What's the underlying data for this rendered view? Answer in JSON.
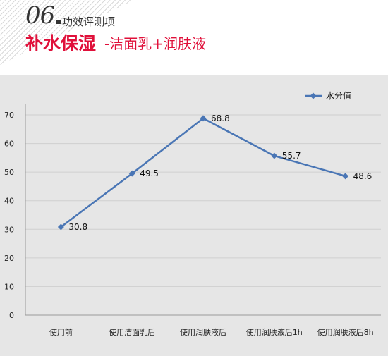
{
  "header": {
    "number": "06",
    "subtitle": "功效评测项",
    "title_main": "补水保湿",
    "title_sub": "-洁面乳+润肤液"
  },
  "colors": {
    "accent": "#e0103a",
    "series": "#4a76b5",
    "panel": "#e6e6e6"
  },
  "chart_data": {
    "type": "line",
    "categories": [
      "使用前",
      "使用洁面乳后",
      "使用润肤液后",
      "使用润肤液后1h",
      "使用润肤液后8h"
    ],
    "series": [
      {
        "name": "水分值",
        "values": [
          30.8,
          49.5,
          68.8,
          55.7,
          48.6
        ],
        "labels": [
          "30.8",
          "49.5",
          "68.8",
          "55.7",
          "48.6"
        ]
      }
    ],
    "ylim": [
      0,
      70
    ],
    "yticks": [
      "0",
      "10",
      "20",
      "30",
      "40",
      "50",
      "60",
      "70"
    ],
    "grid": true,
    "legend": "top-right",
    "marker": "diamond"
  }
}
